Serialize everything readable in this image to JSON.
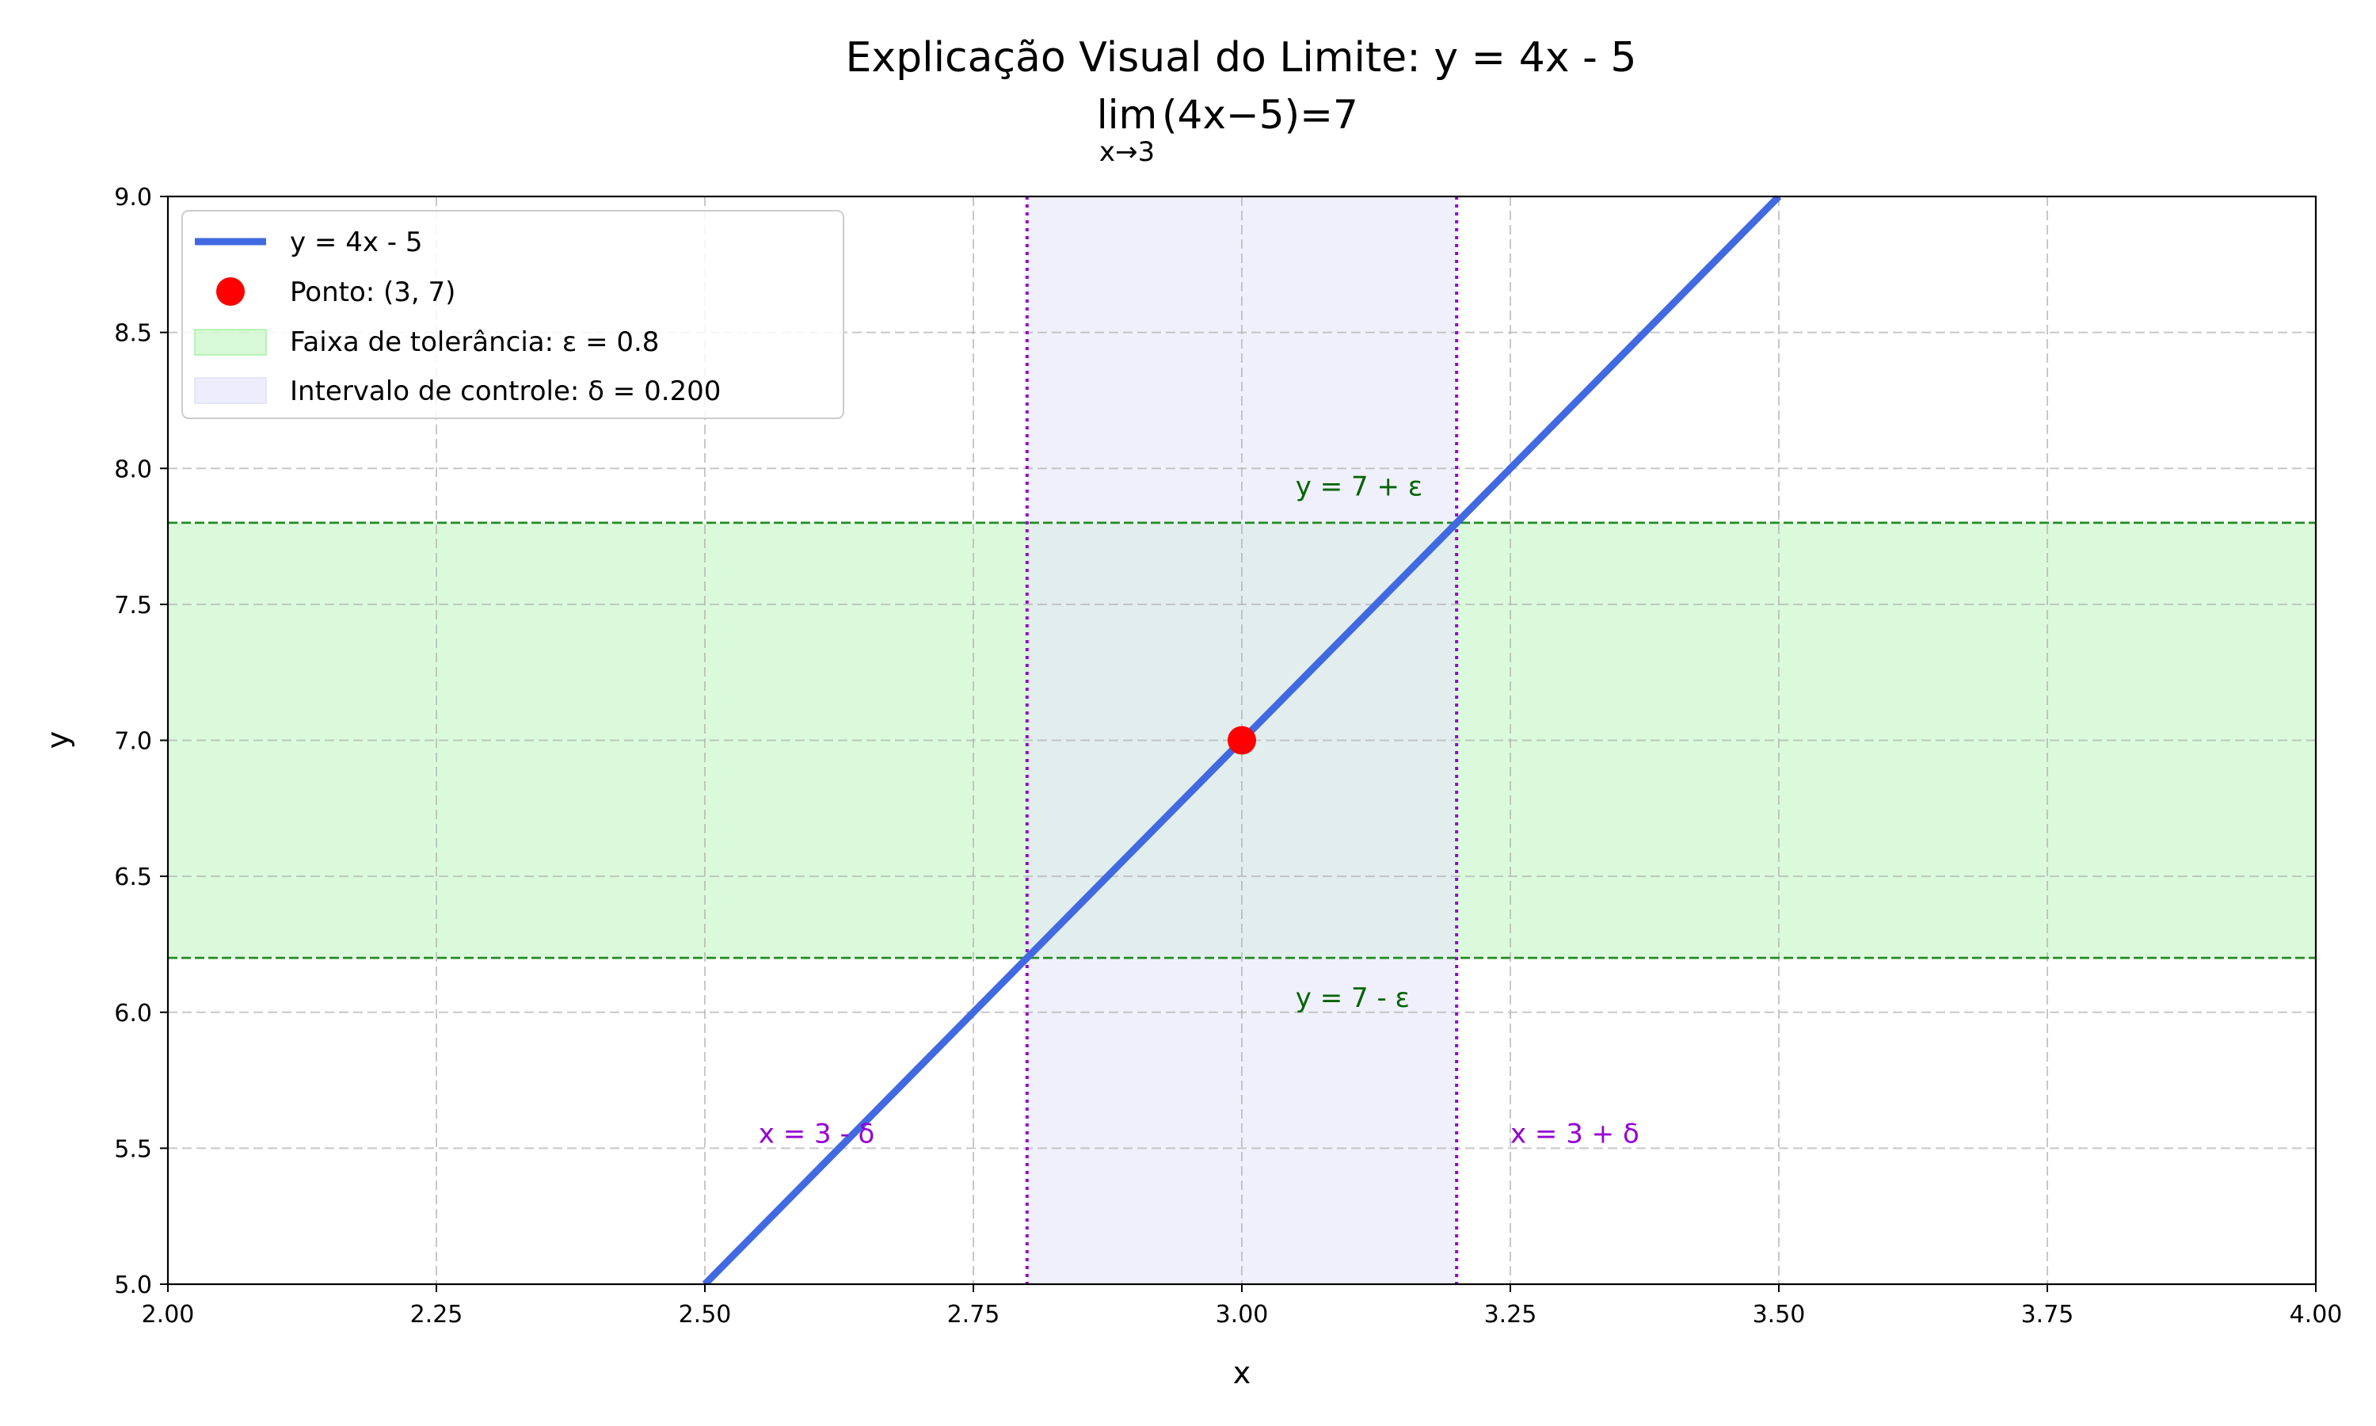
{
  "chart_data": {
    "type": "line",
    "title": "Explicação Visual do Limite: y = 4x - 5",
    "subtitle": {
      "lim": "lim",
      "sub": "x→3",
      "expr": "(4x−5)=7"
    },
    "xlabel": "x",
    "ylabel": "y",
    "xlim": [
      2.0,
      4.0
    ],
    "ylim": [
      5.0,
      9.0
    ],
    "xticks": [
      "2.00",
      "2.25",
      "2.50",
      "2.75",
      "3.00",
      "3.25",
      "3.50",
      "3.75",
      "4.00"
    ],
    "yticks": [
      "5.0",
      "5.5",
      "6.0",
      "6.5",
      "7.0",
      "7.5",
      "8.0",
      "8.5",
      "9.0"
    ],
    "grid": true,
    "legend_position": "top-left",
    "series": [
      {
        "name": "y = 4x - 5",
        "x": [
          2.5,
          3.5
        ],
        "y": [
          5.0,
          9.0
        ],
        "color": "#4169e1"
      }
    ],
    "point": {
      "name": "Ponto: (3, 7)",
      "x": 3,
      "y": 7,
      "color": "#ff0000"
    },
    "epsilon_band": {
      "name": "Faixa de tolerância: ε = 0.8",
      "y_low": 6.2,
      "y_high": 7.8,
      "color": "#90ee90"
    },
    "delta_band": {
      "name": "Intervalo de controle: δ = 0.200",
      "x_low": 2.8,
      "x_high": 3.2,
      "color": "#e6e6fa"
    },
    "annotations": {
      "upper_eps": {
        "text": "y = 7 + ε",
        "x": 3.05,
        "y": 7.9
      },
      "lower_eps": {
        "text": "y = 7 - ε",
        "x": 3.05,
        "y": 6.02
      },
      "left_delta": {
        "text": "x = 3 - δ",
        "x": 2.55,
        "y": 5.52
      },
      "right_delta": {
        "text": "x = 3 + δ",
        "x": 3.25,
        "y": 5.52
      }
    }
  }
}
